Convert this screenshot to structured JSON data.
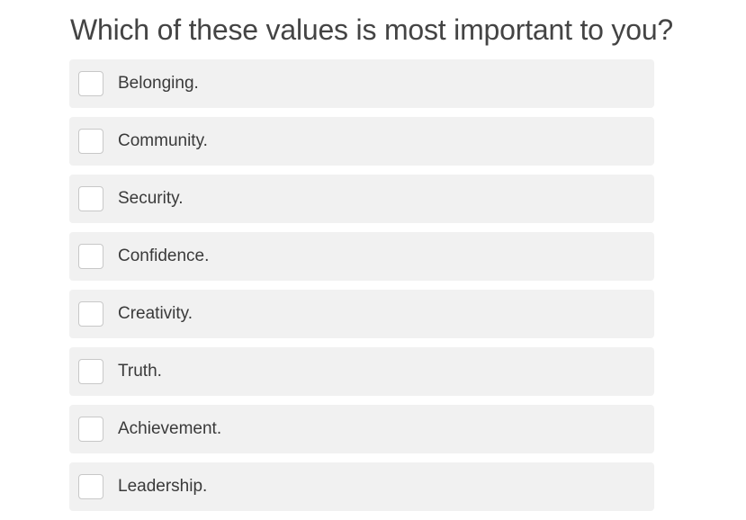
{
  "question": {
    "text": "Which of these values is most important to you?"
  },
  "options": [
    {
      "label": "Belonging.",
      "checked": false
    },
    {
      "label": "Community.",
      "checked": false
    },
    {
      "label": "Security.",
      "checked": false
    },
    {
      "label": "Confidence.",
      "checked": false
    },
    {
      "label": "Creativity.",
      "checked": false
    },
    {
      "label": "Truth.",
      "checked": false
    },
    {
      "label": "Achievement.",
      "checked": false
    },
    {
      "label": "Leadership.",
      "checked": false
    }
  ]
}
